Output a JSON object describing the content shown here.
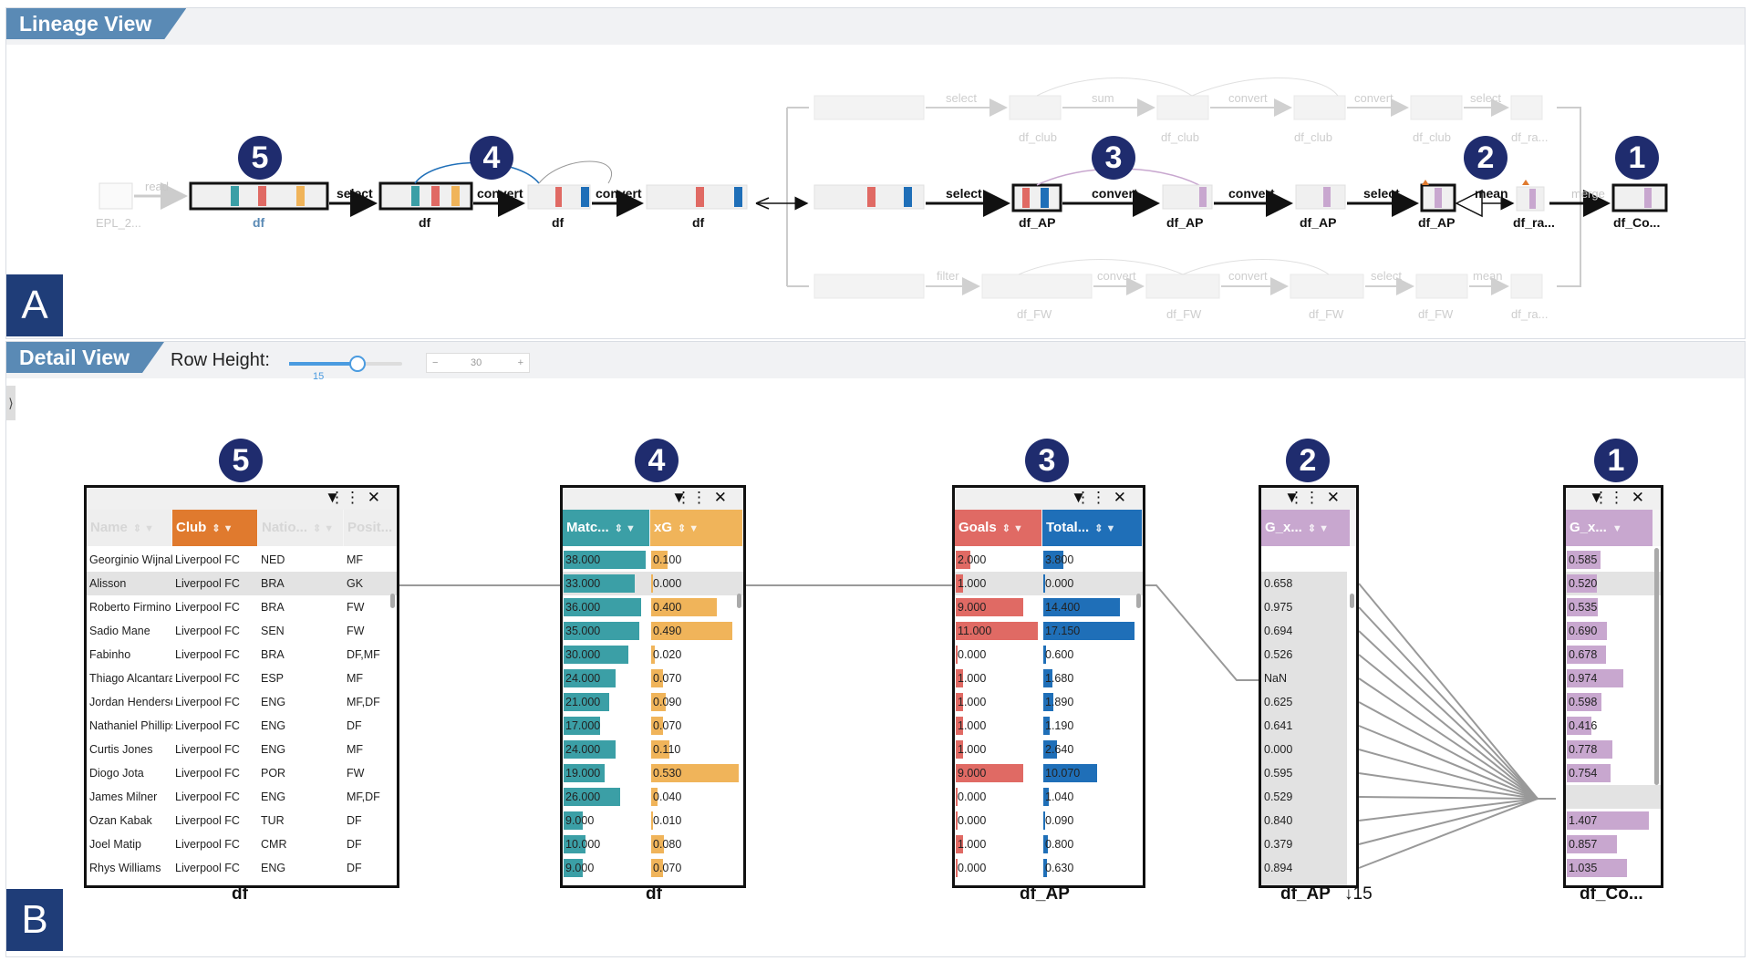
{
  "lineage_view": {
    "title": "Lineage View",
    "corner_label": "A",
    "top_badges": [
      "5",
      "4",
      "3",
      "2",
      "1"
    ],
    "edge_labels": {
      "read": "read",
      "select1": "select",
      "convert1": "convert",
      "convert2": "convert",
      "select2": "select",
      "convert3": "convert",
      "convert4": "convert",
      "select3": "select",
      "mean": "mean",
      "merge": "merge"
    },
    "node_labels": {
      "epl": "EPL_2...",
      "df1": "df",
      "df2": "df",
      "df3": "df",
      "df4": "df",
      "dfap1": "df_AP",
      "dfap2": "df_AP",
      "dfap3": "df_AP",
      "dfap4": "df_AP",
      "dfra": "df_ra...",
      "dfco": "df_Co..."
    },
    "faint_top": {
      "select": "select",
      "sum": "sum",
      "convert_a": "convert",
      "convert_b": "convert",
      "select_b": "select",
      "df_club_1": "df_club",
      "df_club_2": "df_club",
      "df_club_3": "df_club",
      "df_club_4": "df_club",
      "df_ra": "df_ra..."
    },
    "faint_bottom": {
      "filter": "filter",
      "convert_a": "convert",
      "convert_b": "convert",
      "select": "select",
      "mean": "mean",
      "df_fw_1": "df_FW",
      "df_fw_2": "df_FW",
      "df_fw_3": "df_FW",
      "df_fw_4": "df_FW",
      "df_ra": "df_ra..."
    }
  },
  "detail_view": {
    "title": "Detail View",
    "corner_label": "B",
    "row_height_label": "Row Height:",
    "slider_value": 15,
    "stepper_value": "30",
    "stepper_minus": "−",
    "stepper_plus": "+",
    "collapse_glyph": "⟩"
  },
  "colors": {
    "teal": "#3b9fa6",
    "orange": "#e07a2e",
    "xg": "#f0b45a",
    "goals": "#e06a64",
    "blue": "#1f6fb8",
    "purple": "#c8a7cf",
    "navy": "#1f2c6e"
  },
  "toolbar_icons": {
    "filter": "▼",
    "grid": "⋮⋮",
    "close": "✕"
  },
  "tables": [
    {
      "id": "t5",
      "badge": "5",
      "label": "df",
      "columns": [
        {
          "name": "Name",
          "sort": "⇕ ▼"
        },
        {
          "name": "Club",
          "sort": "⇕ ▼"
        },
        {
          "name": "Natio...",
          "sort": "⇕ ▼"
        },
        {
          "name": "Posit...",
          "sort": "▼"
        }
      ],
      "rows": [
        [
          "Georginio Wijnaldum",
          "Liverpool FC",
          "NED",
          "MF"
        ],
        [
          "Alisson",
          "Liverpool FC",
          "BRA",
          "GK"
        ],
        [
          "Roberto Firmino",
          "Liverpool FC",
          "BRA",
          "FW"
        ],
        [
          "Sadio Mane",
          "Liverpool FC",
          "SEN",
          "FW"
        ],
        [
          "Fabinho",
          "Liverpool FC",
          "BRA",
          "DF,MF"
        ],
        [
          "Thiago Alcantara",
          "Liverpool FC",
          "ESP",
          "MF"
        ],
        [
          "Jordan Henderson",
          "Liverpool FC",
          "ENG",
          "MF,DF"
        ],
        [
          "Nathaniel Phillips",
          "Liverpool FC",
          "ENG",
          "DF"
        ],
        [
          "Curtis Jones",
          "Liverpool FC",
          "ENG",
          "MF"
        ],
        [
          "Diogo Jota",
          "Liverpool FC",
          "POR",
          "FW"
        ],
        [
          "James Milner",
          "Liverpool FC",
          "ENG",
          "MF,DF"
        ],
        [
          "Ozan Kabak",
          "Liverpool FC",
          "TUR",
          "DF"
        ],
        [
          "Joel Matip",
          "Liverpool FC",
          "CMR",
          "DF"
        ],
        [
          "Rhys Williams",
          "Liverpool FC",
          "ENG",
          "DF"
        ]
      ]
    },
    {
      "id": "t4",
      "badge": "4",
      "label": "df",
      "columns": [
        {
          "name": "Matc...",
          "sort": "⇕ ▼"
        },
        {
          "name": "xG",
          "sort": "⇕ ▼"
        }
      ],
      "rows": [
        [
          "38.000",
          "0.100"
        ],
        [
          "33.000",
          "0.000"
        ],
        [
          "36.000",
          "0.400"
        ],
        [
          "35.000",
          "0.490"
        ],
        [
          "30.000",
          "0.020"
        ],
        [
          "24.000",
          "0.070"
        ],
        [
          "21.000",
          "0.090"
        ],
        [
          "17.000",
          "0.070"
        ],
        [
          "24.000",
          "0.110"
        ],
        [
          "19.000",
          "0.530"
        ],
        [
          "26.000",
          "0.040"
        ],
        [
          "9.000",
          "0.010"
        ],
        [
          "10.000",
          "0.080"
        ],
        [
          "9.000",
          "0.070"
        ]
      ],
      "max": [
        38,
        0.53
      ]
    },
    {
      "id": "t3",
      "badge": "3",
      "label": "df_AP",
      "columns": [
        {
          "name": "Goals",
          "sort": "⇕ ▼"
        },
        {
          "name": "Total...",
          "sort": "⇕ ▼"
        }
      ],
      "rows": [
        [
          "2.000",
          "3.800"
        ],
        [
          "1.000",
          "0.000"
        ],
        [
          "9.000",
          "14.400"
        ],
        [
          "11.000",
          "17.150"
        ],
        [
          "0.000",
          "0.600"
        ],
        [
          "1.000",
          "1.680"
        ],
        [
          "1.000",
          "1.890"
        ],
        [
          "1.000",
          "1.190"
        ],
        [
          "1.000",
          "2.640"
        ],
        [
          "9.000",
          "10.070"
        ],
        [
          "0.000",
          "1.040"
        ],
        [
          "0.000",
          "0.090"
        ],
        [
          "1.000",
          "0.800"
        ],
        [
          "0.000",
          "0.630"
        ]
      ],
      "max": [
        11,
        17.15
      ]
    },
    {
      "id": "t2",
      "badge": "2",
      "label": "df_AP",
      "sort_indicator": "↓15",
      "columns": [
        {
          "name": "G_x...",
          "sort": "⇕ ▼"
        }
      ],
      "rows": [
        [
          "0.658"
        ],
        [
          "0.975"
        ],
        [
          "0.694"
        ],
        [
          "0.526"
        ],
        [
          "NaN"
        ],
        [
          "0.625"
        ],
        [
          "0.641"
        ],
        [
          "0.000"
        ],
        [
          "0.595"
        ],
        [
          "0.529"
        ],
        [
          "0.840"
        ],
        [
          "0.379"
        ],
        [
          "0.894"
        ]
      ]
    },
    {
      "id": "t1",
      "badge": "1",
      "label": "df_Co...",
      "columns": [
        {
          "name": "G_x...",
          "sort": "▼"
        }
      ],
      "rows": [
        [
          "0.585"
        ],
        [
          "0.520"
        ],
        [
          "0.535"
        ],
        [
          "0.690"
        ],
        [
          "0.678"
        ],
        [
          "0.974"
        ],
        [
          "0.598"
        ],
        [
          "0.416"
        ],
        [
          "0.778"
        ],
        [
          "0.754"
        ],
        [
          ""
        ],
        [
          "1.407"
        ],
        [
          "0.857"
        ],
        [
          "1.035"
        ]
      ],
      "max": [
        1.407
      ]
    }
  ]
}
